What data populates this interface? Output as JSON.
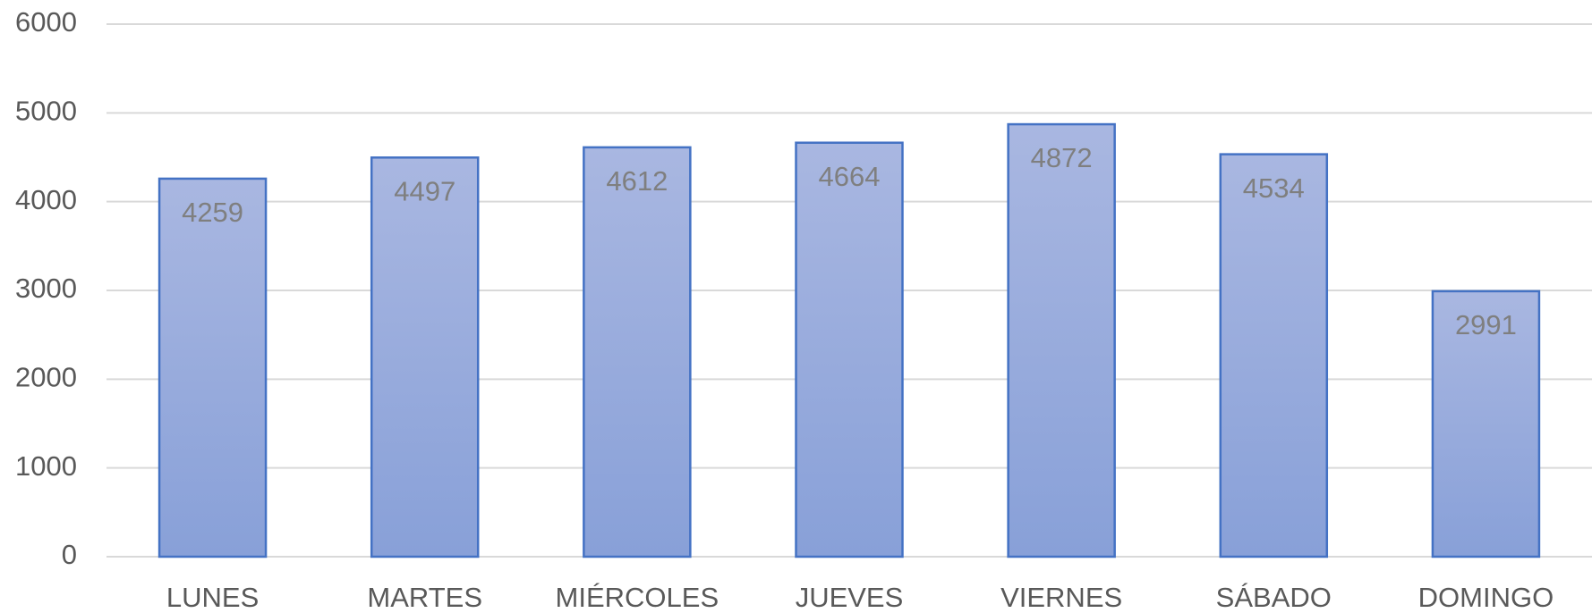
{
  "chart_data": {
    "type": "bar",
    "categories": [
      "LUNES",
      "MARTES",
      "MIÉRCOLES",
      "JUEVES",
      "VIERNES",
      "SÁBADO",
      "DOMINGO"
    ],
    "values": [
      4259,
      4497,
      4612,
      4664,
      4872,
      4534,
      2991
    ],
    "color": "#4472c4",
    "ylim": [
      0,
      6000
    ],
    "yticks": [
      0,
      1000,
      2000,
      3000,
      4000,
      5000,
      6000
    ],
    "grid": true,
    "data_labels": true
  }
}
